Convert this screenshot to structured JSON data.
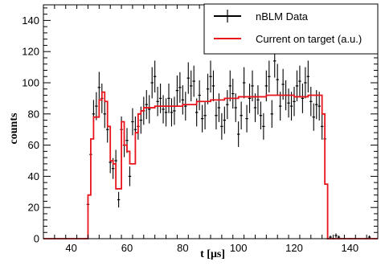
{
  "chart_data": {
    "type": "line",
    "xlabel": "t [μs]",
    "ylabel": "counts",
    "xlim": [
      30,
      150
    ],
    "ylim": [
      0,
      150
    ],
    "x_major_ticks": [
      40,
      60,
      80,
      100,
      120,
      140
    ],
    "y_major_ticks": [
      0,
      20,
      40,
      60,
      80,
      100,
      120,
      140
    ],
    "x_tick_labels": [
      "40",
      "60",
      "80",
      "100",
      "120",
      "140"
    ],
    "y_tick_labels": [
      "0",
      "20",
      "40",
      "60",
      "80",
      "100",
      "120",
      "140"
    ],
    "grid": false,
    "legend_position": "top-right",
    "colors": {
      "data": "#000000",
      "current": "#e8141b"
    },
    "series": [
      {
        "name": "nBLM Data",
        "kind": "points_with_error_bars",
        "x": [
          45,
          46,
          47,
          48,
          49,
          50,
          51,
          52,
          53,
          54,
          55,
          56,
          57,
          58,
          59,
          60,
          61,
          62,
          63,
          64,
          65,
          66,
          67,
          68,
          69,
          70,
          71,
          72,
          73,
          74,
          75,
          76,
          77,
          78,
          79,
          80,
          81,
          82,
          83,
          84,
          85,
          86,
          87,
          88,
          89,
          90,
          91,
          92,
          93,
          94,
          95,
          96,
          97,
          98,
          99,
          100,
          101,
          102,
          103,
          104,
          105,
          106,
          107,
          108,
          109,
          110,
          111,
          112,
          113,
          114,
          115,
          116,
          117,
          118,
          119,
          120,
          121,
          122,
          123,
          124,
          125,
          126,
          127,
          128,
          129,
          130,
          131,
          132,
          133,
          134,
          135,
          136,
          137,
          140,
          147,
          149
        ],
        "y": [
          0,
          22,
          54,
          80,
          85,
          97,
          90,
          80,
          70,
          49,
          45,
          50,
          25,
          70,
          60,
          63,
          40,
          75,
          70,
          72,
          76,
          82,
          86,
          83,
          100,
          104,
          88,
          90,
          83,
          81,
          90,
          81,
          82,
          95,
          97,
          89,
          85,
          103,
          98,
          101,
          81,
          92,
          77,
          79,
          96,
          104,
          98,
          79,
          84,
          72,
          76,
          86,
          98,
          93,
          84,
          67,
          79,
          100,
          77,
          90,
          98,
          84,
          89,
          79,
          72,
          98,
          104,
          80,
          114,
          102,
          85,
          99,
          92,
          87,
          85,
          88,
          98,
          101,
          90,
          100,
          104,
          88,
          78,
          86,
          85,
          72,
          64,
          0,
          1,
          0,
          2,
          1,
          0,
          0,
          1,
          0
        ],
        "err": [
          0,
          5,
          7,
          9,
          9,
          10,
          9.5,
          9,
          8.4,
          7,
          6.7,
          7,
          5,
          8.4,
          7.7,
          8,
          6.3,
          8.7,
          8.4,
          8.5,
          8.7,
          9,
          9.3,
          9.1,
          10,
          10.2,
          9.4,
          9.5,
          9.1,
          9,
          9.5,
          9,
          9,
          9.7,
          9.8,
          9.4,
          9.2,
          10.1,
          9.9,
          10,
          9,
          9.6,
          8.8,
          8.9,
          9.8,
          10.2,
          9.9,
          8.9,
          9.2,
          8.5,
          8.7,
          9.3,
          9.9,
          9.6,
          9.2,
          8.2,
          8.9,
          10,
          8.8,
          9.5,
          9.9,
          9.2,
          9.4,
          8.9,
          8.5,
          9.9,
          10.2,
          8.9,
          10.7,
          10.1,
          9.2,
          9.9,
          9.6,
          9.3,
          9.2,
          9.4,
          9.9,
          10,
          9.5,
          10,
          10.2,
          9.4,
          8.8,
          9.3,
          9.2,
          8.5,
          8,
          0,
          1,
          0,
          1.4,
          1,
          0,
          0,
          1,
          0
        ]
      },
      {
        "name": "Current on target (a.u.)",
        "kind": "step",
        "x": [
          30,
          45,
          46,
          47,
          48,
          49,
          50,
          51,
          52,
          53,
          54,
          55,
          56,
          57,
          58,
          59,
          60,
          61,
          62,
          63,
          64,
          65,
          66,
          70,
          75,
          80,
          85,
          90,
          95,
          100,
          105,
          110,
          115,
          120,
          125,
          128,
          129,
          130,
          131,
          132,
          133,
          150
        ],
        "y": [
          0,
          0,
          28,
          64,
          78,
          78,
          89,
          94,
          88,
          72,
          50,
          48,
          32,
          32,
          75,
          60,
          56,
          48,
          48,
          68,
          80,
          82,
          84,
          85,
          85,
          86,
          88,
          89,
          90,
          91,
          91,
          92,
          92,
          91,
          92,
          92,
          92,
          80,
          35,
          0,
          0,
          0
        ]
      }
    ]
  }
}
